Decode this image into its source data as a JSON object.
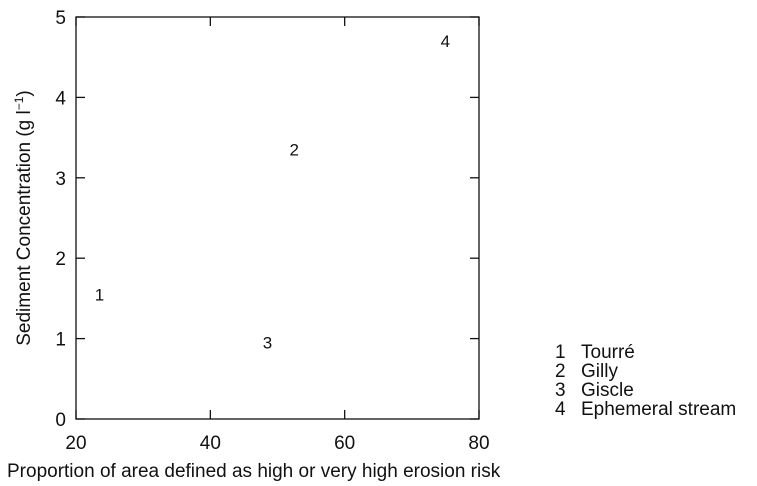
{
  "chart_data": {
    "type": "scatter",
    "xlabel": "Proportion of area defined as high or very high erosion risk",
    "ylabel": "Sediment Concentration (g l",
    "ylabel_sup": "−1",
    "ylabel_close": ")",
    "xlim": [
      20,
      80
    ],
    "ylim": [
      0,
      5
    ],
    "xticks": [
      20,
      40,
      60,
      80
    ],
    "yticks": [
      0,
      1,
      2,
      3,
      4,
      5
    ],
    "grid": false,
    "points": [
      {
        "label": "1",
        "x": 23.5,
        "y": 1.55
      },
      {
        "label": "2",
        "x": 52.5,
        "y": 3.35
      },
      {
        "label": "3",
        "x": 48.5,
        "y": 0.95
      },
      {
        "label": "4",
        "x": 75,
        "y": 4.7
      }
    ],
    "legend_position": "bottom-right outside",
    "legend": [
      {
        "num": "1",
        "name": "Tourré"
      },
      {
        "num": "2",
        "name": "Gilly"
      },
      {
        "num": "3",
        "name": "Giscle"
      },
      {
        "num": "4",
        "name": "Ephemeral stream"
      }
    ]
  }
}
